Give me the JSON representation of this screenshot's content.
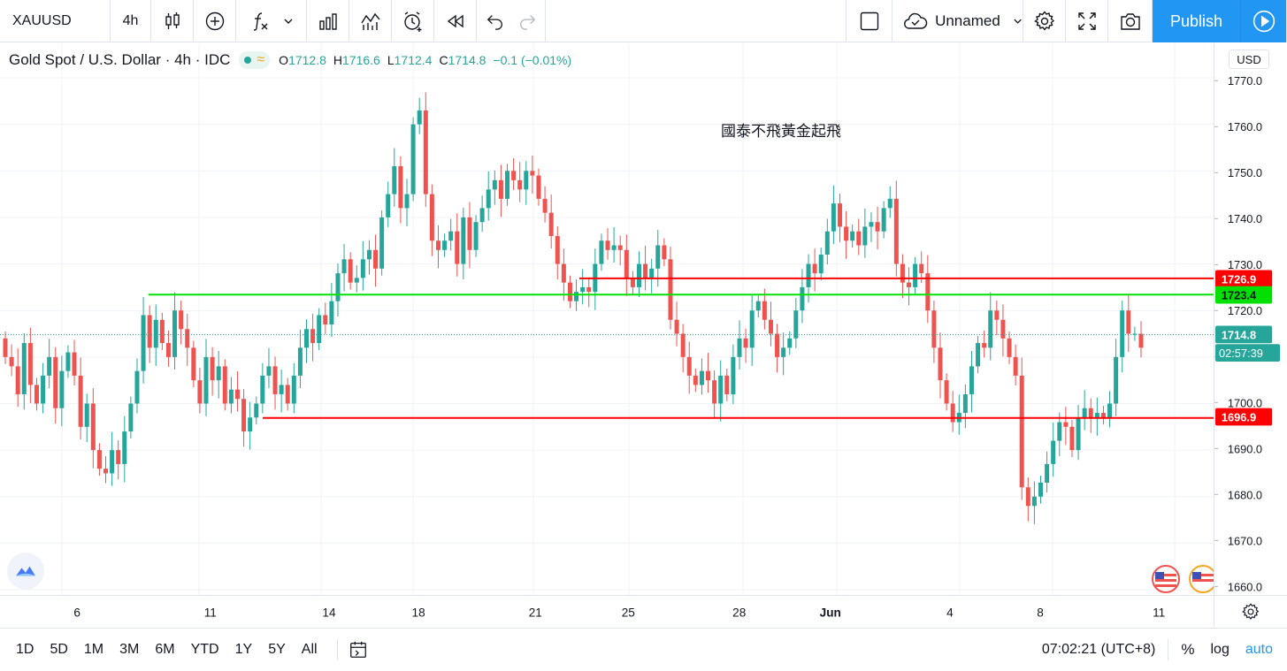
{
  "toolbar": {
    "symbol": "XAUUSD",
    "interval": "4h",
    "layout_name": "Unnamed",
    "publish_label": "Publish",
    "icons": [
      "candles-icon",
      "add-indicator-icon",
      "fx-icon",
      "chevron-down-icon",
      "bar-chart-icon",
      "compare-icon",
      "alert-icon",
      "replay-icon",
      "undo-icon",
      "redo-icon",
      "square-icon",
      "cloud-icon",
      "gear-icon",
      "fullscreen-icon",
      "camera-icon",
      "play-icon"
    ]
  },
  "legend": {
    "title": "Gold Spot / U.S. Dollar",
    "interval": "4h",
    "source": "IDC",
    "o_label": "O",
    "o": "1712.8",
    "h_label": "H",
    "h": "1716.6",
    "l_label": "L",
    "l": "1712.4",
    "c_label": "C",
    "c": "1714.8",
    "change": "−0.1 (−0.01%)"
  },
  "currency": "USD",
  "annotation": "國泰不飛黃金起飛",
  "price_labels": {
    "line_red_top": "1726.9",
    "line_green": "1723.4",
    "current_price": "1714.8",
    "countdown": "02:57:39",
    "line_red_bottom": "1696.9"
  },
  "colors": {
    "up": "#26a69a",
    "down": "#ef5350",
    "accent": "#2196f3",
    "green_line": "#00e000",
    "red_line": "#ff0000"
  },
  "chart_data": {
    "type": "candlestick",
    "y_ticks": [
      "1770.0",
      "1760.0",
      "1750.0",
      "1740.0",
      "1730.0",
      "1720.0",
      "1710.0",
      "1700.0",
      "1690.0",
      "1680.0",
      "1670.0",
      "1660.0"
    ],
    "x_ticks": [
      "6",
      "11",
      "14",
      "18",
      "21",
      "25",
      "28",
      "Jun",
      "4",
      "8",
      "11"
    ],
    "ylim": [
      1658,
      1774
    ],
    "horizontal_lines": [
      {
        "value": 1726.9,
        "color": "red"
      },
      {
        "value": 1723.4,
        "color": "green"
      },
      {
        "value": 1696.9,
        "color": "red"
      }
    ],
    "last_price": 1714.8
  },
  "bottom": {
    "ranges": [
      "1D",
      "5D",
      "1M",
      "3M",
      "6M",
      "YTD",
      "1Y",
      "5Y",
      "All"
    ],
    "clock": "07:02:21 (UTC+8)",
    "percent": "%",
    "log": "log",
    "auto": "auto"
  }
}
